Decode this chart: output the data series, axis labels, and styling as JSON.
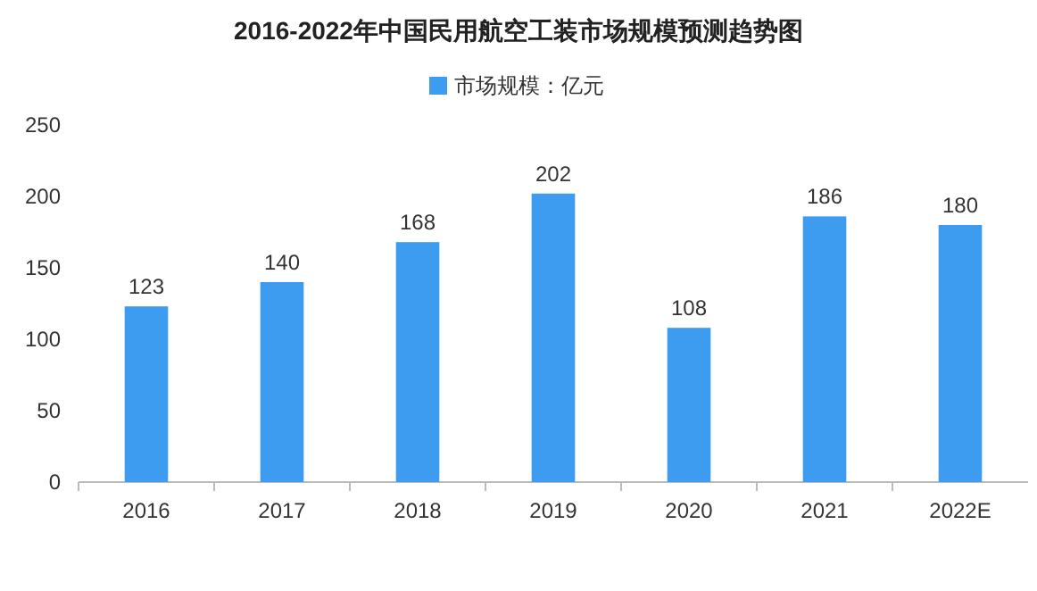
{
  "chart_data": {
    "type": "bar",
    "title": "2016-2022年中国民用航空工装市场规模预测趋势图",
    "categories": [
      "2016",
      "2017",
      "2018",
      "2019",
      "2020",
      "2021",
      "2022E"
    ],
    "series": [
      {
        "name": "市场规模：亿元",
        "color": "#3d9bf0",
        "values": [
          123,
          140,
          168,
          202,
          108,
          186,
          180
        ]
      }
    ],
    "ylim": [
      0,
      250
    ],
    "yticks": [
      0,
      50,
      100,
      150,
      200,
      250
    ],
    "grid": false,
    "legend": "top",
    "data_labels": true
  }
}
